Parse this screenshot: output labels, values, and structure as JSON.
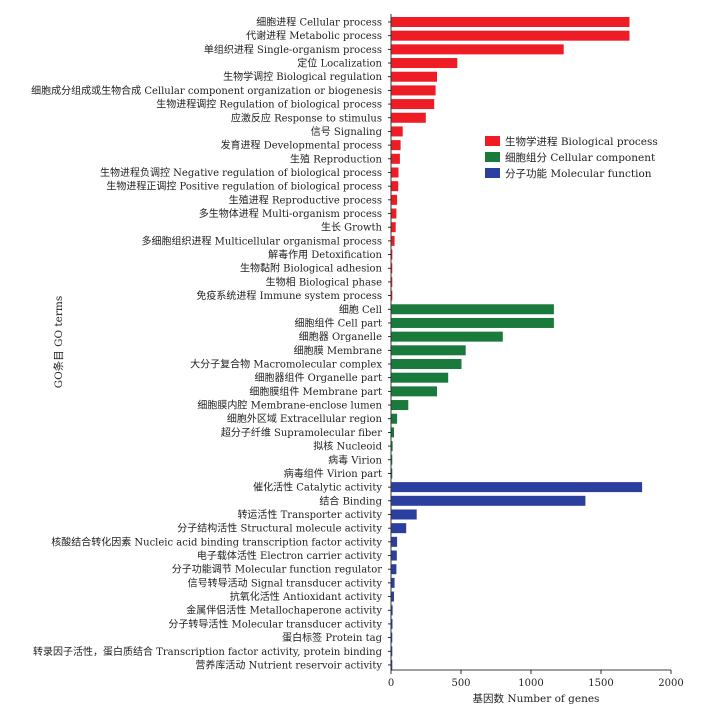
{
  "chart_data": {
    "type": "bar",
    "orientation": "horizontal",
    "xlabel": "基因数  Number of genes",
    "ylabel": "GO条目 GO terms",
    "xlim": [
      0,
      2000
    ],
    "xticks": [
      "0",
      "500",
      "1000",
      "1500",
      "2000"
    ],
    "grid": false,
    "legend_position": "right",
    "series": [
      {
        "name": "生物学进程 Biological process",
        "color": "#ee1c25",
        "categories": [
          "细胞进程 Cellular process",
          "代谢进程 Metabolic process",
          "单组织进程 Single-organism process",
          "定位 Localization",
          "生物学调控 Biological regulation",
          "细胞成分组成或生物合成 Cellular component organization or biogenesis",
          "生物进程调控 Regulation of biological process",
          "应激反应 Response to stimulus",
          "信号 Signaling",
          "发育进程 Developmental process",
          "生殖 Reproduction",
          "生物进程负调控 Negative regulation of biological process",
          "生物进程正调控 Positive regulation of biological process",
          "生殖进程 Reproductive process",
          "多生物体进程 Multi-organism process",
          "生长 Growth",
          "多细胞组织进程 Multicellular organismal process",
          "解毒作用 Detoxification",
          "生物黏附 Biological adhesion",
          "生物相 Biological phase",
          "免疫系统进程 Immune system process"
        ],
        "values": [
          1700,
          1700,
          1230,
          470,
          325,
          315,
          305,
          245,
          80,
          65,
          60,
          50,
          48,
          40,
          35,
          30,
          22,
          6,
          5,
          4,
          3
        ]
      },
      {
        "name": "细胞组分 Cellular component",
        "color": "#1a7a3c",
        "categories": [
          "细胞 Cell",
          "细胞组件 Cell part",
          "细胞器 Organelle",
          "细胞膜 Membrane",
          "大分子复合物 Macromolecular complex",
          "细胞器组件 Organelle part",
          "细胞膜组件 Membrane part",
          "细胞膜内腔 Membrane-enclose lumen",
          "细胞外区域 Extracellular region",
          "超分子纤维 Supramolecular fiber",
          "拟核 Nucleoid",
          "病毒 Virion",
          "病毒组件 Virion part"
        ],
        "values": [
          1160,
          1160,
          795,
          530,
          500,
          405,
          325,
          120,
          40,
          18,
          8,
          5,
          5
        ]
      },
      {
        "name": "分子功能 Molecular function",
        "color": "#2b3f9e",
        "categories": [
          "催化活性 Catalytic activity",
          "结合 Binding",
          "转运活性 Transporter activity",
          "分子结构活性 Structural molecule activity",
          "核酸结合转化因素 Nucleic acid binding transcription factor activity",
          "电子载体活性 Electron carrier activity",
          "分子功能调节 Molecular function regulator",
          "信号转导活动 Signal transducer activity",
          "抗氧化活性 Antioxidant activity",
          "金属伴侣活性 Metallochaperone activity",
          "分子转导活性 Molecular transducer activity",
          "蛋白标签 Protein tag",
          "转录因子活性，蛋白质结合 Transcription factor activity, protein binding",
          "营养库活动 Nutrient reservoir activity"
        ],
        "values": [
          1790,
          1385,
          180,
          105,
          40,
          38,
          35,
          22,
          18,
          8,
          7,
          4,
          3,
          2
        ]
      }
    ]
  }
}
